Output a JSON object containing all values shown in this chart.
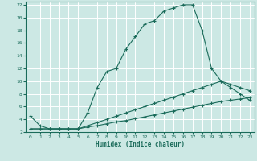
{
  "xlabel": "Humidex (Indice chaleur)",
  "background_color": "#cce8e4",
  "line_color": "#1a6b5a",
  "grid_color": "#b0d8d2",
  "xlim": [
    -0.5,
    23.5
  ],
  "ylim": [
    2,
    22.5
  ],
  "xticks": [
    0,
    1,
    2,
    3,
    4,
    5,
    6,
    7,
    8,
    9,
    10,
    11,
    12,
    13,
    14,
    15,
    16,
    17,
    18,
    19,
    20,
    21,
    22,
    23
  ],
  "yticks": [
    2,
    4,
    6,
    8,
    10,
    12,
    14,
    16,
    18,
    20,
    22
  ],
  "line1_x": [
    0,
    1,
    2,
    3,
    4,
    5,
    6,
    7,
    8,
    9,
    10,
    11,
    12,
    13,
    14,
    15,
    16,
    17,
    18,
    19,
    20,
    21,
    22,
    23
  ],
  "line1_y": [
    4.5,
    3.0,
    2.5,
    2.5,
    2.5,
    2.5,
    5.0,
    9.0,
    11.5,
    12.0,
    15.0,
    17.0,
    19.0,
    19.5,
    21.0,
    21.5,
    22.0,
    22.0,
    18.0,
    12.0,
    10.0,
    9.0,
    8.0,
    7.0
  ],
  "line2_x": [
    0,
    1,
    2,
    3,
    4,
    5,
    6,
    7,
    8,
    9,
    10,
    11,
    12,
    13,
    14,
    15,
    16,
    17,
    18,
    19,
    20,
    21,
    22,
    23
  ],
  "line2_y": [
    2.5,
    2.5,
    2.5,
    2.5,
    2.5,
    2.5,
    3.0,
    3.5,
    4.0,
    4.5,
    5.0,
    5.5,
    6.0,
    6.5,
    7.0,
    7.5,
    8.0,
    8.5,
    9.0,
    9.5,
    10.0,
    9.5,
    9.0,
    8.5
  ],
  "line3_x": [
    0,
    1,
    2,
    3,
    4,
    5,
    6,
    7,
    8,
    9,
    10,
    11,
    12,
    13,
    14,
    15,
    16,
    17,
    18,
    19,
    20,
    21,
    22,
    23
  ],
  "line3_y": [
    2.5,
    2.5,
    2.5,
    2.5,
    2.5,
    2.5,
    2.8,
    3.0,
    3.3,
    3.6,
    3.8,
    4.1,
    4.4,
    4.7,
    5.0,
    5.3,
    5.6,
    5.9,
    6.2,
    6.5,
    6.8,
    7.0,
    7.2,
    7.4
  ]
}
